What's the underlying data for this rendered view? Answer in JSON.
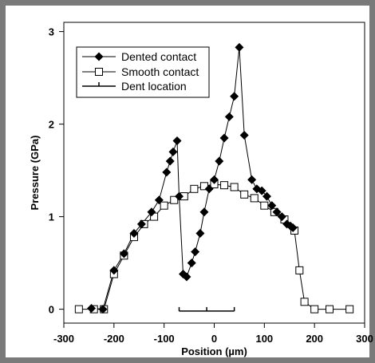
{
  "chart_data": {
    "type": "line",
    "xlabel": "Position (µm)",
    "ylabel": "Pressure (GPa)",
    "xlim": [
      -300,
      300
    ],
    "ylim": [
      -0.15,
      3.1
    ],
    "xticks": [
      -300,
      -200,
      -100,
      0,
      100,
      200,
      300
    ],
    "yticks": [
      0,
      1,
      2,
      3
    ],
    "grid": false,
    "legend_position": "top-left",
    "series": [
      {
        "name": "Dented contact",
        "marker": "filled-diamond",
        "x": [
          -245,
          -222,
          -200,
          -180,
          -160,
          -145,
          -125,
          -110,
          -95,
          -88,
          -82,
          -74,
          -70,
          -62,
          -55,
          -45,
          -38,
          -28,
          -20,
          -10,
          0,
          10,
          20,
          30,
          40,
          50,
          60,
          75,
          85,
          95,
          105,
          115,
          125,
          135,
          145,
          152,
          157
        ],
        "y": [
          0.01,
          0.0,
          0.42,
          0.6,
          0.82,
          0.92,
          1.05,
          1.18,
          1.48,
          1.6,
          1.7,
          1.82,
          1.22,
          0.38,
          0.35,
          0.5,
          0.62,
          0.82,
          1.05,
          1.3,
          1.4,
          1.6,
          1.85,
          2.08,
          2.3,
          2.83,
          1.88,
          1.4,
          1.3,
          1.28,
          1.22,
          1.12,
          1.05,
          1.0,
          0.92,
          0.9,
          0.88
        ]
      },
      {
        "name": "Smooth contact",
        "marker": "open-square",
        "x": [
          -270,
          -240,
          -220,
          -200,
          -180,
          -160,
          -140,
          -120,
          -100,
          -80,
          -60,
          -40,
          -20,
          0,
          20,
          40,
          60,
          80,
          100,
          120,
          140,
          160,
          170,
          180,
          200,
          230,
          270
        ],
        "y": [
          0.0,
          0.0,
          0.0,
          0.38,
          0.58,
          0.78,
          0.92,
          1.0,
          1.12,
          1.18,
          1.22,
          1.3,
          1.33,
          1.35,
          1.34,
          1.32,
          1.24,
          1.2,
          1.12,
          1.05,
          0.97,
          0.85,
          0.42,
          0.08,
          0.0,
          0.0,
          0.0
        ]
      }
    ],
    "dent_location": {
      "name": "Dent location",
      "x_start": -70,
      "x_end": 40,
      "x_center": -15,
      "y": -0.02
    }
  }
}
